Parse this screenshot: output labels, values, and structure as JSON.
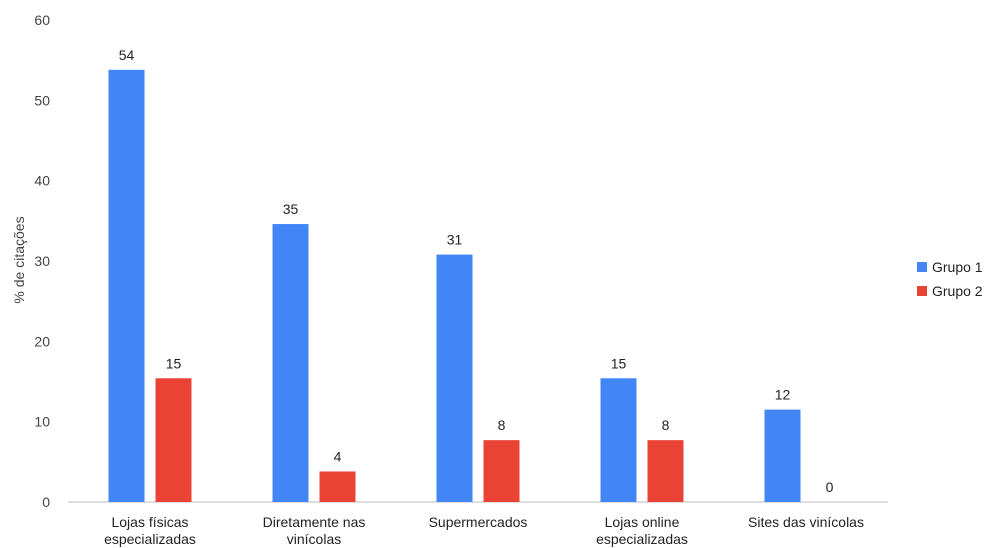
{
  "chart_data": {
    "type": "bar",
    "ylabel": "% de citações",
    "ylim": [
      0,
      60
    ],
    "yticks": [
      0,
      10,
      20,
      30,
      40,
      50,
      60
    ],
    "grid": false,
    "legend_position": "right",
    "categories": [
      [
        "Lojas físicas",
        "especializadas"
      ],
      [
        "Diretamente nas",
        "vinícolas"
      ],
      [
        "Supermercados"
      ],
      [
        "Lojas online",
        "especializadas"
      ],
      [
        "Sites das vinícolas"
      ]
    ],
    "series": [
      {
        "name": "Grupo 1",
        "color": "#4285f4",
        "values": [
          54,
          35,
          31,
          15,
          12
        ],
        "display_values": [
          53.8,
          34.6,
          30.8,
          15.4,
          11.5
        ]
      },
      {
        "name": "Grupo 2",
        "color": "#ea4335",
        "values": [
          15,
          4,
          8,
          8,
          0
        ],
        "display_values": [
          15.4,
          3.8,
          7.7,
          7.7,
          0
        ]
      }
    ]
  }
}
